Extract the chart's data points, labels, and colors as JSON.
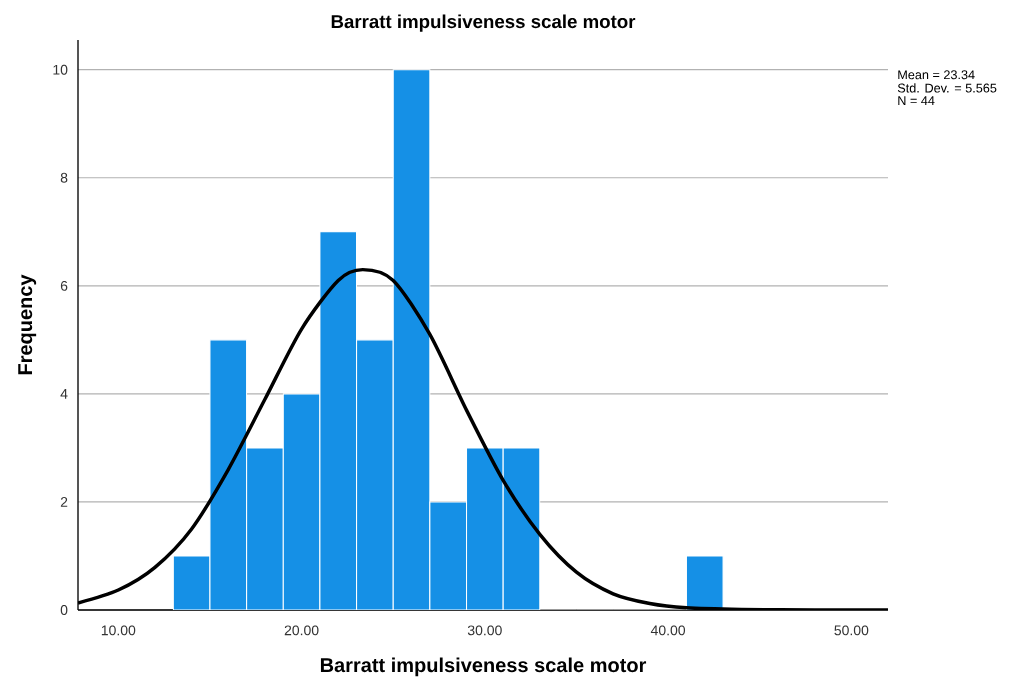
{
  "chart_data": {
    "type": "histogram",
    "title": "Barratt impulsiveness scale motor",
    "xlabel": "Barratt impulsiveness scale motor",
    "ylabel": "Frequency",
    "bins": [
      13,
      15,
      17,
      19,
      21,
      23,
      25,
      27,
      29,
      31,
      33,
      35,
      37,
      39,
      41,
      43
    ],
    "values": [
      1,
      5,
      3,
      4,
      7,
      5,
      10,
      2,
      3,
      3,
      0,
      0,
      0,
      0,
      1
    ],
    "color": "#1590e6",
    "series": [
      {
        "type": "line",
        "color": "#000000",
        "x": [
          7.8,
          10,
          12,
          14,
          16,
          18,
          20,
          22,
          23.34,
          25,
          27,
          29,
          31,
          33,
          35,
          37,
          39,
          41,
          44,
          48,
          52
        ],
        "values": [
          0.13,
          0.37,
          0.79,
          1.5,
          2.6,
          3.9,
          5.2,
          6.1,
          6.3,
          6.1,
          5.1,
          3.7,
          2.4,
          1.4,
          0.7,
          0.3,
          0.12,
          0.04,
          0.01,
          0,
          0
        ]
      }
    ],
    "xlim": [
      7.8,
      52
    ],
    "ylim": [
      0,
      10.55
    ],
    "xticks": [
      {
        "value": 10,
        "label": "10.00"
      },
      {
        "value": 20,
        "label": "20.00"
      },
      {
        "value": 30,
        "label": "30.00"
      },
      {
        "value": 40,
        "label": "40.00"
      },
      {
        "value": 50,
        "label": "50.00"
      }
    ],
    "yticks": [
      0,
      2,
      4,
      6,
      8,
      10
    ],
    "grid": "y",
    "annotations": [
      "Mean = 23.34",
      "Std. Dev. = 5.565",
      "N = 44"
    ]
  }
}
